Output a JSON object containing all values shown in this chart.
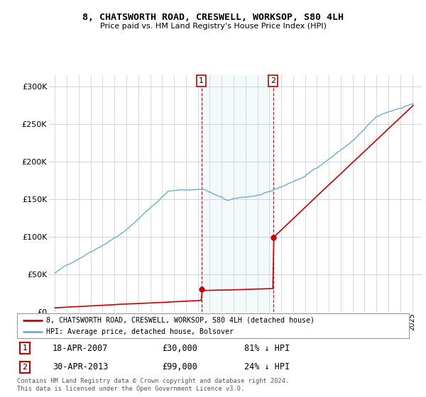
{
  "title": "8, CHATSWORTH ROAD, CRESWELL, WORKSOP, S80 4LH",
  "subtitle": "Price paid vs. HM Land Registry's House Price Index (HPI)",
  "ylabel_ticks": [
    "£0",
    "£50K",
    "£100K",
    "£150K",
    "£200K",
    "£250K",
    "£300K"
  ],
  "ytick_values": [
    0,
    50000,
    100000,
    150000,
    200000,
    250000,
    300000
  ],
  "ylim": [
    0,
    315000
  ],
  "xlim": [
    1994.5,
    2025.8
  ],
  "sale1_date": "18-APR-2007",
  "sale1_price": 30000,
  "sale1_pct": "81% ↓ HPI",
  "sale1_year": 2007.3,
  "sale2_date": "30-APR-2013",
  "sale2_price": 99000,
  "sale2_pct": "24% ↓ HPI",
  "sale2_year": 2013.33,
  "hpi_color": "#6baed6",
  "price_color": "#cc0000",
  "shade_color": "#d6e8f7",
  "legend_label1": "8, CHATSWORTH ROAD, CRESWELL, WORKSOP, S80 4LH (detached house)",
  "legend_label2": "HPI: Average price, detached house, Bolsover",
  "footnote": "Contains HM Land Registry data © Crown copyright and database right 2024.\nThis data is licensed under the Open Government Licence v3.0.",
  "background_color": "#ffffff",
  "grid_color": "#cccccc",
  "box_color": "#cc0000"
}
